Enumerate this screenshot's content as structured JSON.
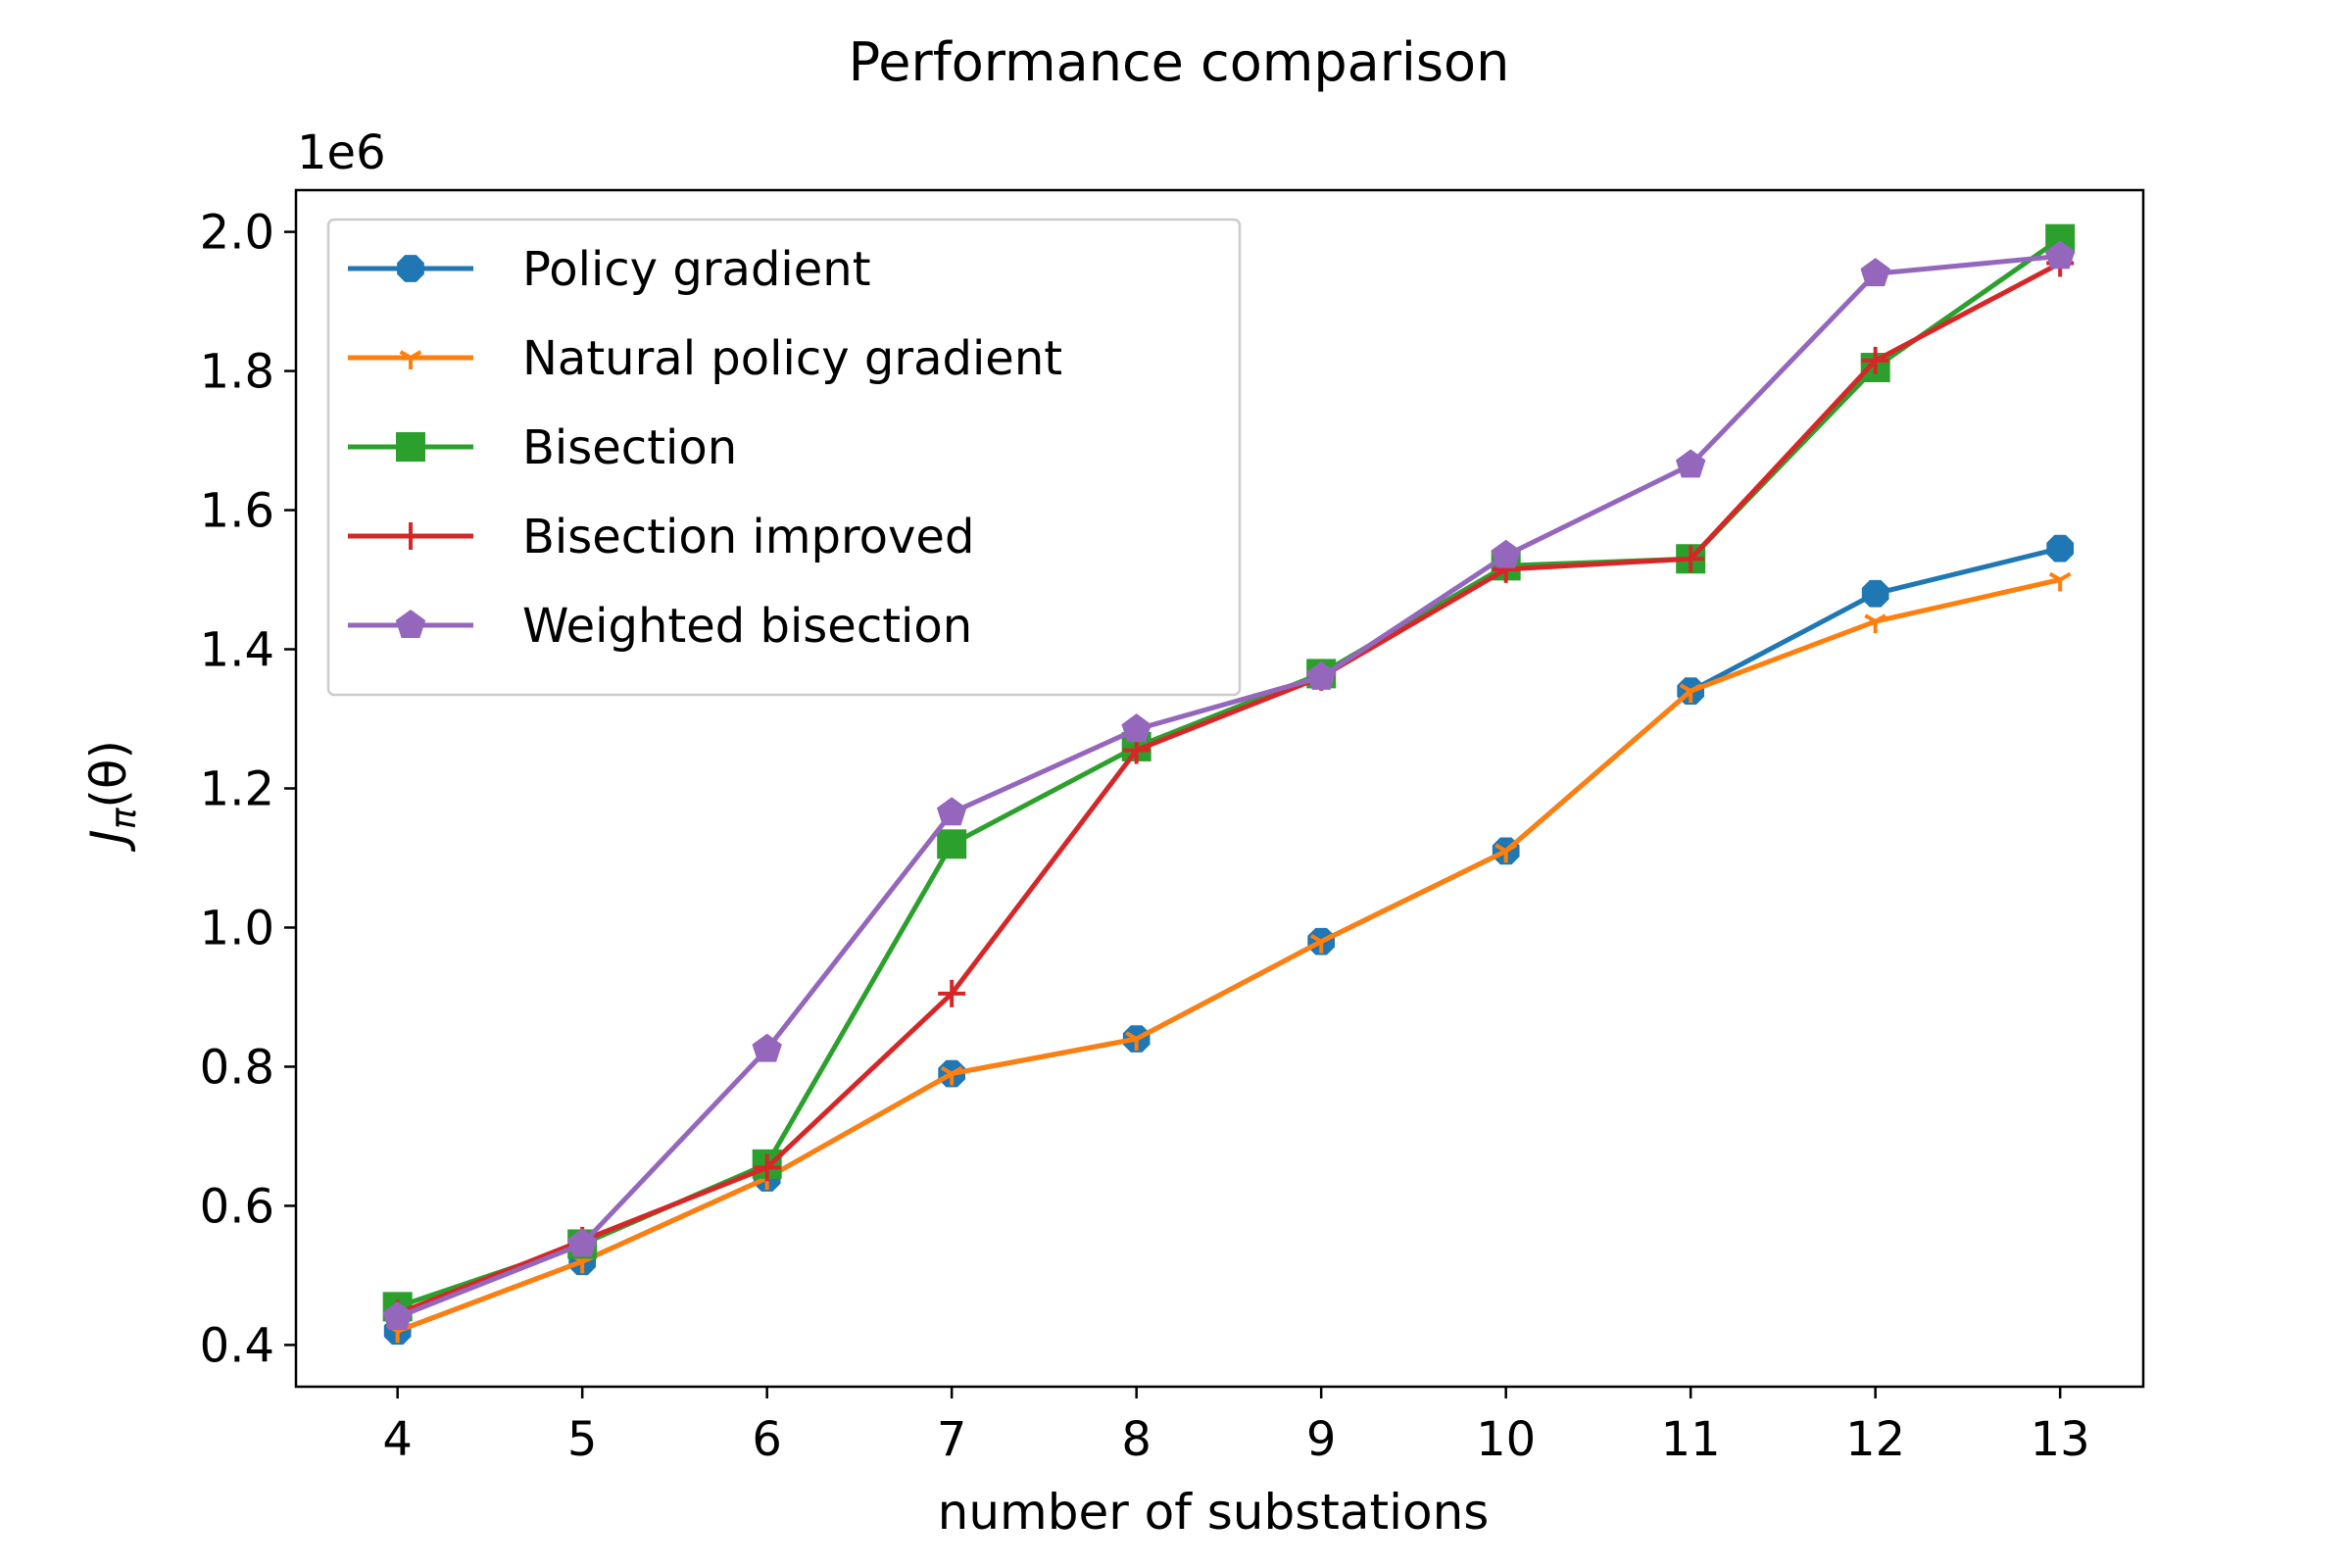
{
  "chart_data": {
    "type": "line",
    "title": "Performance comparison",
    "xlabel": "number of substations",
    "ylabel": "J_π(θ)",
    "ylabel_parts": {
      "main": "J",
      "sub": "π",
      "arg": "(θ)"
    },
    "y_offset_label": "1e6",
    "x": [
      4,
      5,
      6,
      7,
      8,
      9,
      10,
      11,
      12,
      13
    ],
    "x_ticks": [
      "4",
      "5",
      "6",
      "7",
      "8",
      "9",
      "10",
      "11",
      "12",
      "13"
    ],
    "y_ticks": [
      0.4,
      0.6,
      0.8,
      1.0,
      1.2,
      1.4,
      1.6,
      1.8,
      2.0
    ],
    "y_tick_labels": [
      "0.4",
      "0.6",
      "0.8",
      "1.0",
      "1.2",
      "1.4",
      "1.6",
      "1.8",
      "2.0"
    ],
    "xlim": [
      3.45,
      13.45
    ],
    "ylim": [
      0.34,
      2.06
    ],
    "grid": false,
    "legend_position": "top-left",
    "series": [
      {
        "name": "Policy gradient",
        "color": "#1f77b4",
        "marker": "octagon",
        "values": [
          0.42,
          0.52,
          0.64,
          0.79,
          0.84,
          0.98,
          1.11,
          1.34,
          1.48,
          1.545
        ]
      },
      {
        "name": "Natural policy gradient",
        "color": "#ff7f0e",
        "marker": "tri-star",
        "values": [
          0.42,
          0.52,
          0.64,
          0.79,
          0.84,
          0.98,
          1.11,
          1.34,
          1.44,
          1.5
        ]
      },
      {
        "name": "Bisection",
        "color": "#2ca02c",
        "marker": "square",
        "values": [
          0.455,
          0.545,
          0.66,
          1.12,
          1.26,
          1.365,
          1.52,
          1.53,
          1.805,
          1.99
        ]
      },
      {
        "name": "Bisection improved",
        "color": "#d62728",
        "marker": "plus",
        "values": [
          0.445,
          0.55,
          0.655,
          0.905,
          1.255,
          1.36,
          1.515,
          1.53,
          1.815,
          1.955
        ]
      },
      {
        "name": "Weighted bisection",
        "color": "#9467bd",
        "marker": "pentagon",
        "values": [
          0.44,
          0.545,
          0.825,
          1.165,
          1.285,
          1.36,
          1.535,
          1.665,
          1.94,
          1.965
        ]
      }
    ]
  }
}
